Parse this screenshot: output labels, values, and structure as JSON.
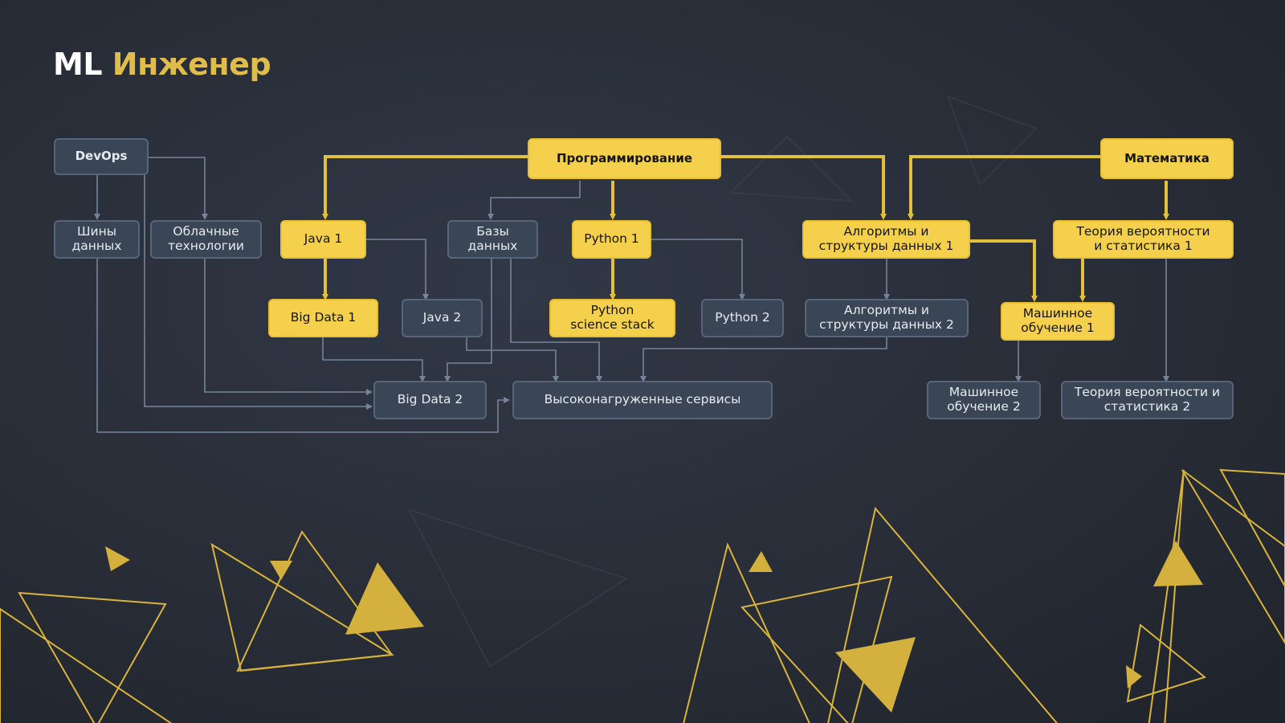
{
  "title": {
    "part1": "ML",
    "part2": "Инженер"
  },
  "colors": {
    "accent": "#f5d04c",
    "accent_line": "#e3bf3c",
    "node_grey": "#3a4656",
    "node_grey_border": "#56657a",
    "grey_line": "#76849a",
    "background": "#262b35"
  },
  "nodes": {
    "devops": "DevOps",
    "shiny": "Шины\nданных",
    "cloud": "Облачные\nтехнологии",
    "java1": "Java 1",
    "bigdata1": "Big Data 1",
    "java2": "Java 2",
    "databases": "Базы\nданных",
    "programming": "Программирование",
    "python1": "Python 1",
    "python_sci": "Python\nscience stack",
    "python2": "Python 2",
    "algo1": "Алгоритмы и\nструктуры данных 1",
    "algo2": "Алгоритмы и\nструктуры данных 2",
    "math": "Математика",
    "prob1": "Теория вероятности\nи статистика 1",
    "ml1": "Машинное\nобучение 1",
    "ml2": "Машинное\nобучение 2",
    "prob2": "Теория вероятности и\nстатистика 2",
    "bigdata2": "Big Data 2",
    "highload": "Высоконагруженные сервисы"
  }
}
